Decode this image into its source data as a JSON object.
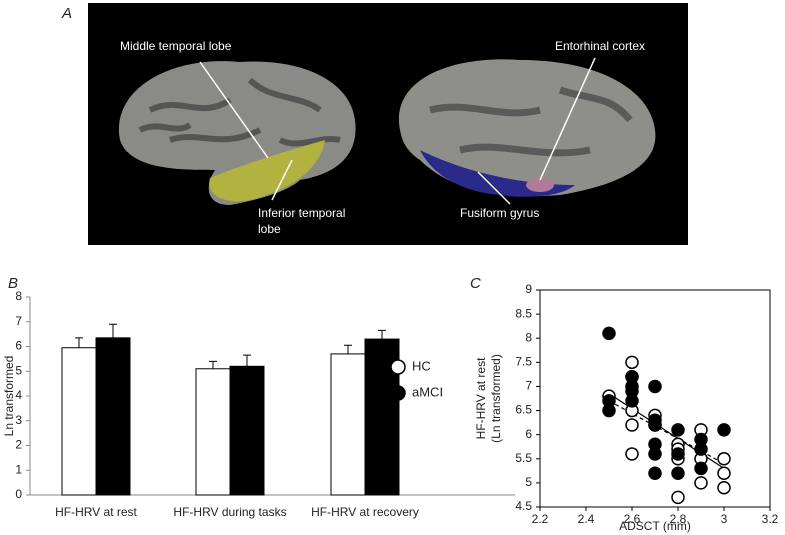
{
  "panel_a": {
    "label": "A",
    "annotations": [
      {
        "lines": [
          "Middle temporal lobe"
        ]
      },
      {
        "lines": [
          "Inferior temporal",
          "lobe"
        ]
      },
      {
        "lines": [
          "Entorhinal cortex"
        ]
      },
      {
        "lines": [
          "Fusiform gyrus"
        ]
      }
    ]
  },
  "chart_data": [
    {
      "type": "bar",
      "panel_label": "B",
      "ylabel": "Ln transformed",
      "categories": [
        "HF-HRV at rest",
        "HF-HRV during tasks",
        "HF-HRV at recovery"
      ],
      "series": [
        {
          "name": "HC",
          "color": "#ffffff",
          "values": [
            5.95,
            5.1,
            5.7
          ],
          "errors": [
            0.4,
            0.3,
            0.35
          ]
        },
        {
          "name": "aMCI",
          "color": "#000000",
          "values": [
            6.35,
            5.2,
            6.3
          ],
          "errors": [
            0.55,
            0.45,
            0.35
          ]
        }
      ],
      "ylim": [
        0,
        8
      ],
      "yticks": [
        0,
        1,
        2,
        3,
        4,
        5,
        6,
        7,
        8
      ],
      "legend": "right"
    },
    {
      "type": "scatter",
      "panel_label": "C",
      "xlabel": "ADSCT (mm)",
      "ylabel": [
        "HF-HRV at rest",
        "(Ln transformed)"
      ],
      "xlim": [
        2.2,
        3.2
      ],
      "xticks": [
        2.2,
        2.4,
        2.6,
        2.8,
        3,
        3.2
      ],
      "ylim": [
        4.5,
        9
      ],
      "yticks": [
        4.5,
        5,
        5.5,
        6,
        6.5,
        7,
        7.5,
        8,
        8.5,
        9
      ],
      "series": [
        {
          "name": "HC",
          "color": "#ffffff",
          "x": [
            2.5,
            2.6,
            2.6,
            2.6,
            2.6,
            2.6,
            2.7,
            2.7,
            2.8,
            2.8,
            2.8,
            2.8,
            2.9,
            2.9,
            2.9,
            3.0,
            3.0,
            3.0
          ],
          "y": [
            6.8,
            7.5,
            7.2,
            6.5,
            6.2,
            5.6,
            6.4,
            6.2,
            5.8,
            5.7,
            5.5,
            4.7,
            6.1,
            5.5,
            5.0,
            5.5,
            5.2,
            4.9
          ],
          "trend_x": [
            2.5,
            3.0
          ],
          "trend": [
            6.85,
            5.3
          ],
          "trend_dash": false
        },
        {
          "name": "aMCI",
          "color": "#000000",
          "x": [
            2.5,
            2.5,
            2.5,
            2.6,
            2.6,
            2.6,
            2.6,
            2.7,
            2.7,
            2.7,
            2.7,
            2.7,
            2.7,
            2.8,
            2.8,
            2.8,
            2.9,
            2.9,
            2.9,
            3.0
          ],
          "y": [
            8.1,
            6.7,
            6.5,
            7.2,
            7.0,
            6.9,
            6.7,
            7.0,
            6.3,
            6.2,
            5.8,
            5.6,
            5.2,
            6.1,
            5.6,
            5.2,
            5.9,
            5.7,
            5.3,
            6.1
          ],
          "trend_x": [
            2.5,
            3.0
          ],
          "trend": [
            6.7,
            5.4
          ],
          "trend_dash": true
        }
      ]
    }
  ]
}
